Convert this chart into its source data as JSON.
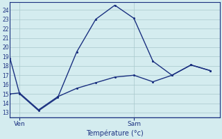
{
  "bg_color": "#d4ecef",
  "line_color": "#1a3080",
  "grid_color": "#a8c8cc",
  "xlabel": "Température (°c)",
  "xlabel_color": "#1a3080",
  "tick_label_color": "#1a3080",
  "xtick_labels": [
    "Ven",
    "Sam"
  ],
  "xtick_positions": [
    0,
    6
  ],
  "ylim": [
    12.5,
    24.8
  ],
  "yticks": [
    13,
    14,
    15,
    16,
    17,
    18,
    19,
    20,
    21,
    22,
    23,
    24
  ],
  "xlim": [
    -0.5,
    10.5
  ],
  "line1_x": [
    -0.5,
    0,
    1,
    2,
    3,
    4,
    5,
    6,
    7,
    8,
    9,
    10
  ],
  "line1_y": [
    18.8,
    15.0,
    13.2,
    14.6,
    19.5,
    23.0,
    24.5,
    23.1,
    18.5,
    17.0,
    18.1,
    17.5
  ],
  "line2_x": [
    -0.5,
    0,
    1,
    2,
    3,
    4,
    5,
    6,
    7,
    8,
    9,
    10
  ],
  "line2_y": [
    15.0,
    15.1,
    13.3,
    14.7,
    15.6,
    16.2,
    16.8,
    17.0,
    16.3,
    17.0,
    18.1,
    17.5
  ],
  "figsize": [
    3.2,
    2.0
  ],
  "dpi": 100
}
